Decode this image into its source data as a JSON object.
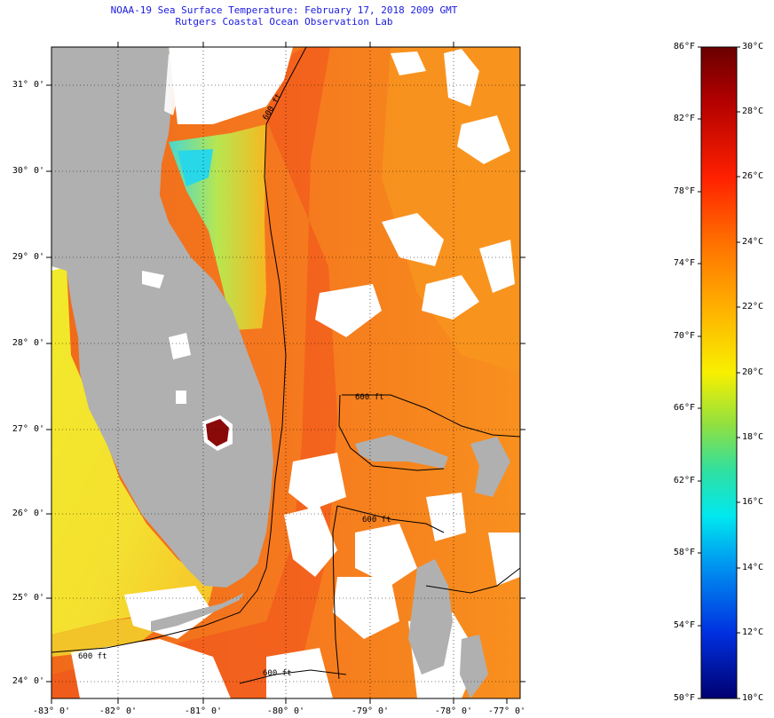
{
  "title": {
    "line1": "NOAA-19 Sea Surface Temperature:  February 17, 2018 2009 GMT",
    "line2": "Rutgers Coastal Ocean Observation Lab"
  },
  "map": {
    "lat_labels": [
      "31° 0'",
      "30° 0'",
      "29° 0'",
      "28° 0'",
      "27° 0'",
      "26° 0'",
      "25° 0'",
      "24° 0'"
    ],
    "lon_labels": [
      "-83° 0'",
      "-82° 0'",
      "-81° 0'",
      "-80° 0'",
      "-79° 0'",
      "-78° 0'",
      "-77° 0'"
    ],
    "contour_labels": [
      "600 ft",
      "600 ft",
      "600 ft",
      "600 ft",
      "600 ft"
    ],
    "colors": {
      "land": "#b0b0b0",
      "cloud": "#ffffff",
      "gulf_stream": "#f0501e",
      "ocean_warm": "#f57a1e",
      "ocean_mid": "#f8a31e",
      "gulf_cool": "#e8ec30",
      "shelf_cool": "#5ad8c8"
    }
  },
  "colorbar": {
    "fahrenheit_labels": [
      "86°F",
      "82°F",
      "78°F",
      "74°F",
      "70°F",
      "66°F",
      "62°F",
      "58°F",
      "54°F",
      "50°F"
    ],
    "celsius_labels": [
      "30°C",
      "28°C",
      "26°C",
      "24°C",
      "22°C",
      "20°C",
      "18°C",
      "16°C",
      "14°C",
      "12°C",
      "10°C"
    ],
    "top_color": "#7a0000",
    "bottom_color": "#000080"
  }
}
